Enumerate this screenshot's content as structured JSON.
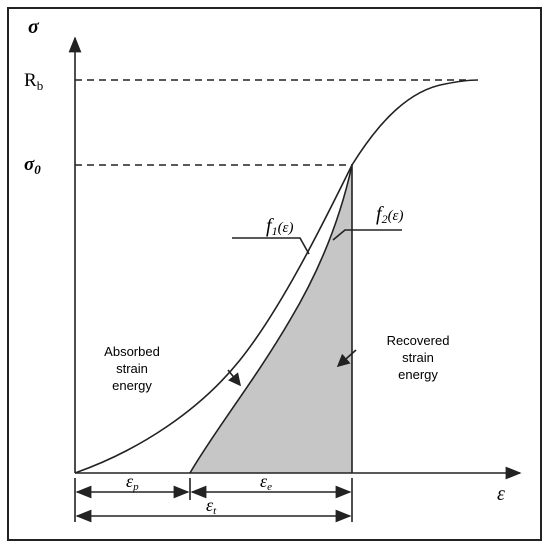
{
  "axes": {
    "y_label": "σ",
    "x_label": "ε"
  },
  "levels": {
    "rb": {
      "base": "R",
      "sub": "b"
    },
    "sigma0": {
      "base": "σ",
      "sub": "0"
    }
  },
  "curves": {
    "f1": {
      "base": "f",
      "sub": "1",
      "arg": "(ε)"
    },
    "f2": {
      "base": "f",
      "sub": "2",
      "arg": "(ε)"
    }
  },
  "regions": {
    "absorbed": [
      "Absorbed",
      "strain",
      "energy"
    ],
    "recovered": [
      "Recovered",
      "strain",
      "energy"
    ]
  },
  "strains": {
    "plastic": {
      "base": "ε",
      "sub": "p"
    },
    "elastic": {
      "base": "ε",
      "sub": "e"
    },
    "total": {
      "base": "ε",
      "sub": "t"
    }
  }
}
